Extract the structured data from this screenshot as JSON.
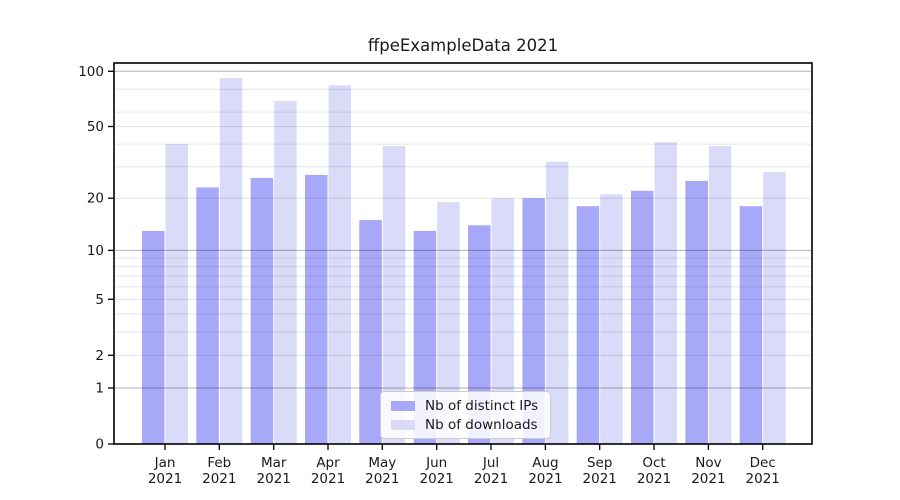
{
  "title": "ffpeExampleData 2021",
  "chart_data": {
    "type": "bar",
    "title": "ffpeExampleData 2021",
    "categories": [
      "Jan",
      "Feb",
      "Mar",
      "Apr",
      "May",
      "Jun",
      "Jul",
      "Aug",
      "Sep",
      "Oct",
      "Nov",
      "Dec"
    ],
    "year_label": "2021",
    "series": [
      {
        "name": "Nb of distinct IPs",
        "color": "#a8a8f8",
        "values": [
          13,
          23,
          26,
          27,
          15,
          13,
          14,
          20,
          18,
          22,
          25,
          18
        ]
      },
      {
        "name": "Nb of downloads",
        "color": "#dadaf9",
        "values": [
          40,
          92,
          69,
          84,
          39,
          19,
          20,
          32,
          21,
          41,
          39,
          28
        ]
      }
    ],
    "yscale": "log1p",
    "ylim": [
      0,
      111
    ],
    "y_ticks": [
      0,
      1,
      2,
      5,
      10,
      20,
      50,
      100
    ],
    "gridlines_major": [
      1,
      10,
      100
    ],
    "gridlines_minor": [
      2,
      3,
      4,
      5,
      6,
      7,
      8,
      9,
      20,
      30,
      40,
      50,
      60,
      80
    ],
    "grid": true,
    "legend_position": "lower center",
    "legend_labels": [
      "Nb of distinct IPs",
      "Nb of downloads"
    ]
  },
  "colors": {
    "background": "#ffffff",
    "bar_distinct_ips": "#a8a8f8",
    "bar_downloads": "#dadaf9",
    "axis_frame": "#000000",
    "grid_major": "rgba(0,0,0,0.30)",
    "grid_minor": "rgba(0,0,0,0.10)",
    "text": "#1a1a1a"
  }
}
